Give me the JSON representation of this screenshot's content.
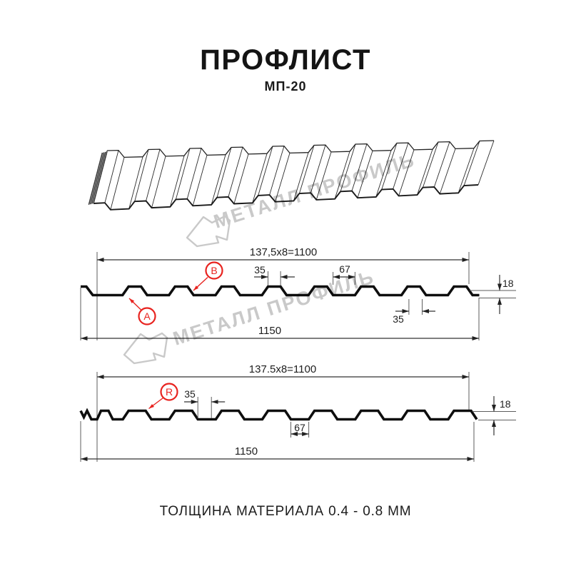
{
  "header": {
    "title": "ПРОФЛИСТ",
    "subtitle": "МП-20"
  },
  "watermark": {
    "text": "МЕТАЛЛ ПРОФИЛЬ"
  },
  "diagram1": {
    "pitch": "137,5x8=1100",
    "crest_top_width": "35",
    "valley_top_width": "67",
    "profile_height": "18",
    "crest_bottom_width": "35",
    "total_width": "1150",
    "label_a": "A",
    "label_b": "B"
  },
  "diagram2": {
    "pitch": "137.5x8=1100",
    "valley_width": "35",
    "profile_height": "18",
    "crest_width": "67",
    "total_width": "1150",
    "label_r": "R"
  },
  "footer": {
    "note": "ТОЛЩИНА МАТЕРИАЛА 0.4 - 0.8 ММ"
  },
  "colors": {
    "accent_red": "#e8231f",
    "line": "#1a1a1a",
    "watermark": "#c9c9c9"
  }
}
